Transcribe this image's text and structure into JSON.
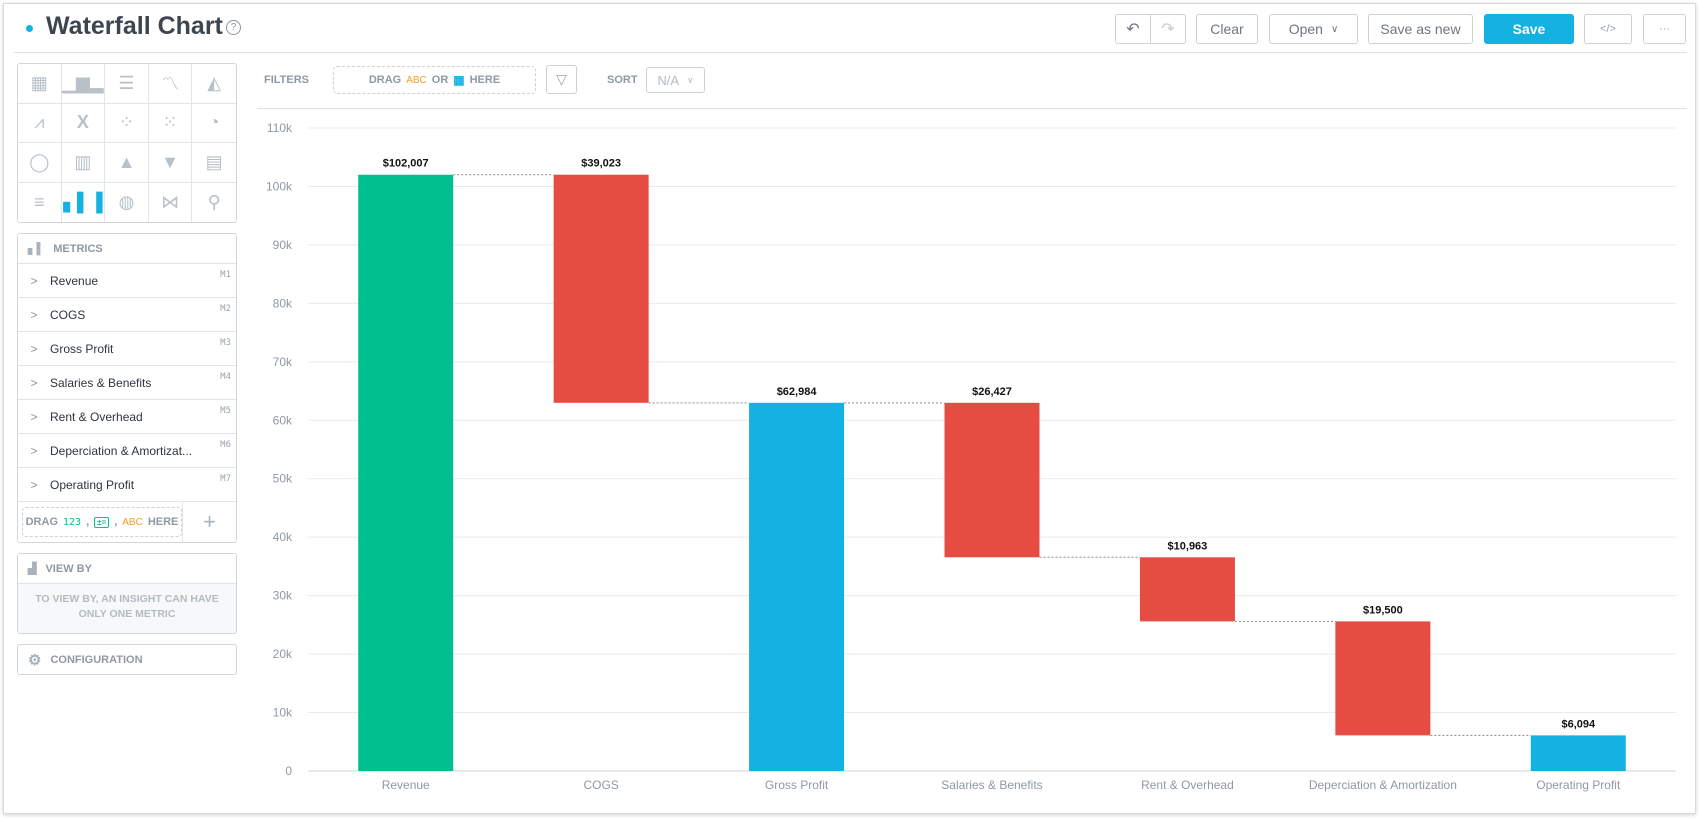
{
  "header": {
    "title": "Waterfall Chart",
    "help_icon": "?"
  },
  "toolbar": {
    "clear": "Clear",
    "open": "Open",
    "save_as_new": "Save as new",
    "save": "Save",
    "embed": "</>",
    "more": "···"
  },
  "colors": {
    "accent": "#14b2e2",
    "increase": "#00c18d",
    "decrease": "#e54d42",
    "total": "#14b2e2"
  },
  "filters": {
    "label": "FILTERS",
    "drag_prefix": "DRAG",
    "abc": "ABC",
    "or": "OR",
    "here": "HERE"
  },
  "sort": {
    "label": "SORT",
    "value": "N/A"
  },
  "metrics": {
    "title": "METRICS",
    "items": [
      {
        "label": "Revenue",
        "tag": "M1"
      },
      {
        "label": "COGS",
        "tag": "M2"
      },
      {
        "label": "Gross Profit",
        "tag": "M3"
      },
      {
        "label": "Salaries & Benefits",
        "tag": "M4"
      },
      {
        "label": "Rent & Overhead",
        "tag": "M5"
      },
      {
        "label": "Deperciation & Amortizat...",
        "tag": "M6"
      },
      {
        "label": "Operating Profit",
        "tag": "M7"
      }
    ],
    "drag": {
      "prefix": "DRAG",
      "num": "123",
      "abc": "ABC",
      "here": "HERE",
      "sep": ","
    }
  },
  "view_by": {
    "title": "VIEW BY",
    "message": "TO VIEW BY, AN INSIGHT CAN HAVE ONLY ONE METRIC"
  },
  "configuration": {
    "title": "CONFIGURATION"
  },
  "chart_data": {
    "type": "waterfall",
    "categories": [
      "Revenue",
      "COGS",
      "Gross Profit",
      "Salaries & Benefits",
      "Rent & Overhead",
      "Deperciation & Amortization",
      "Operating Profit"
    ],
    "values": [
      102007,
      -39023,
      62984,
      -26427,
      -10963,
      -19500,
      6094
    ],
    "kinds": [
      "start",
      "decrease",
      "total",
      "decrease",
      "decrease",
      "decrease",
      "total"
    ],
    "data_labels": [
      "$102,007",
      "$39,023",
      "$62,984",
      "$26,427",
      "$10,963",
      "$19,500",
      "$6,094"
    ],
    "yticks": [
      "0",
      "10k",
      "20k",
      "30k",
      "40k",
      "50k",
      "60k",
      "70k",
      "80k",
      "90k",
      "100k",
      "110k"
    ],
    "ylim": [
      0,
      110000
    ],
    "grid": true,
    "connectors": "dotted"
  }
}
